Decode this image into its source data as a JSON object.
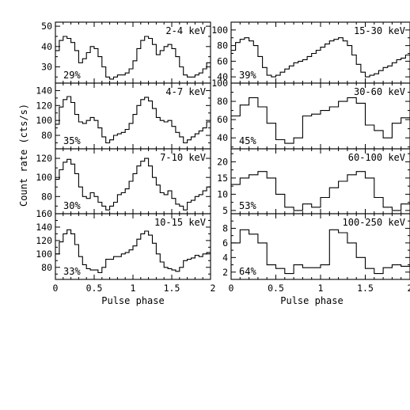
{
  "figure": {
    "ylabel": "Count rate (cts/s)",
    "xlabel_left": "Pulse phase",
    "xlabel_right": "Pulse phase"
  },
  "chart_data": [
    {
      "type": "line",
      "step": true,
      "column": "left",
      "row": 0,
      "band": "2-4 keV",
      "pulsed_fraction": "29%",
      "xlim": [
        0,
        2
      ],
      "ylim": [
        22,
        52
      ],
      "yticks": [
        30,
        40,
        50
      ],
      "xticks": [
        0,
        0.5,
        1,
        1.5,
        2
      ],
      "x": [
        0,
        0.05,
        0.1,
        0.15,
        0.2,
        0.25,
        0.3,
        0.35,
        0.4,
        0.45,
        0.5,
        0.55,
        0.6,
        0.65,
        0.7,
        0.75,
        0.8,
        0.85,
        0.9,
        0.95,
        1,
        1.05,
        1.1,
        1.15,
        1.2,
        1.25,
        1.3,
        1.35,
        1.4,
        1.45,
        1.5,
        1.55,
        1.6,
        1.65,
        1.7,
        1.75,
        1.8,
        1.85,
        1.9,
        1.95
      ],
      "y": [
        38,
        43,
        45,
        44,
        42,
        38,
        32,
        34,
        37,
        40,
        39,
        35,
        30,
        25,
        24,
        25,
        26,
        26,
        27,
        29,
        33,
        39,
        43,
        45,
        44,
        41,
        36,
        38,
        40,
        41,
        39,
        35,
        30,
        26,
        25,
        25,
        26,
        27,
        29,
        32
      ]
    },
    {
      "type": "line",
      "step": true,
      "column": "left",
      "row": 1,
      "band": "4-7 keV",
      "pulsed_fraction": "35%",
      "xlim": [
        0,
        2
      ],
      "ylim": [
        62,
        150
      ],
      "yticks": [
        80,
        100,
        120,
        140
      ],
      "xticks": [
        0,
        0.5,
        1,
        1.5,
        2
      ],
      "x": [
        0,
        0.05,
        0.1,
        0.15,
        0.2,
        0.25,
        0.3,
        0.35,
        0.4,
        0.45,
        0.5,
        0.55,
        0.6,
        0.65,
        0.7,
        0.75,
        0.8,
        0.85,
        0.9,
        0.95,
        1,
        1.05,
        1.1,
        1.15,
        1.2,
        1.25,
        1.3,
        1.35,
        1.4,
        1.45,
        1.5,
        1.55,
        1.6,
        1.65,
        1.7,
        1.75,
        1.8,
        1.85,
        1.9,
        1.95
      ],
      "y": [
        95,
        118,
        128,
        132,
        124,
        108,
        98,
        96,
        100,
        104,
        100,
        90,
        78,
        70,
        74,
        80,
        82,
        84,
        88,
        96,
        108,
        120,
        128,
        131,
        126,
        116,
        104,
        100,
        98,
        100,
        92,
        84,
        78,
        70,
        74,
        78,
        82,
        86,
        90,
        98
      ]
    },
    {
      "type": "line",
      "step": true,
      "column": "left",
      "row": 2,
      "band": "7-10 keV",
      "pulsed_fraction": "30%",
      "xlim": [
        0,
        2
      ],
      "ylim": [
        62,
        130
      ],
      "yticks": [
        80,
        100,
        120
      ],
      "xticks": [
        0,
        0.5,
        1,
        1.5,
        2
      ],
      "x": [
        0,
        0.05,
        0.1,
        0.15,
        0.2,
        0.25,
        0.3,
        0.35,
        0.4,
        0.45,
        0.5,
        0.55,
        0.6,
        0.65,
        0.7,
        0.75,
        0.8,
        0.85,
        0.9,
        0.95,
        1,
        1.05,
        1.1,
        1.15,
        1.2,
        1.25,
        1.3,
        1.35,
        1.4,
        1.45,
        1.5,
        1.55,
        1.6,
        1.65,
        1.7,
        1.75,
        1.8,
        1.85,
        1.9,
        1.95
      ],
      "y": [
        98,
        108,
        116,
        119,
        114,
        104,
        90,
        80,
        78,
        84,
        80,
        74,
        70,
        66,
        70,
        74,
        82,
        84,
        88,
        96,
        104,
        112,
        117,
        120,
        112,
        100,
        92,
        84,
        82,
        86,
        78,
        72,
        70,
        66,
        74,
        76,
        80,
        82,
        86,
        90
      ]
    },
    {
      "type": "line",
      "step": true,
      "column": "left",
      "row": 3,
      "band": "10-15 keV",
      "pulsed_fraction": "33%",
      "xlim": [
        0,
        2
      ],
      "ylim": [
        62,
        160
      ],
      "yticks": [
        80,
        100,
        120,
        140,
        160
      ],
      "xticks": [
        0,
        0.5,
        1,
        1.5,
        2
      ],
      "x": [
        0,
        0.05,
        0.1,
        0.15,
        0.2,
        0.25,
        0.3,
        0.35,
        0.4,
        0.45,
        0.5,
        0.55,
        0.6,
        0.65,
        0.7,
        0.75,
        0.8,
        0.85,
        0.9,
        0.95,
        1,
        1.05,
        1.1,
        1.15,
        1.2,
        1.25,
        1.3,
        1.35,
        1.4,
        1.45,
        1.5,
        1.55,
        1.6,
        1.65,
        1.7,
        1.75,
        1.8,
        1.85,
        1.9,
        1.95
      ],
      "y": [
        100,
        118,
        130,
        136,
        130,
        114,
        96,
        84,
        78,
        76,
        76,
        72,
        80,
        92,
        92,
        96,
        96,
        100,
        102,
        106,
        112,
        122,
        130,
        134,
        128,
        116,
        100,
        88,
        80,
        78,
        76,
        74,
        80,
        90,
        92,
        94,
        98,
        96,
        100,
        102
      ]
    },
    {
      "type": "line",
      "step": true,
      "column": "right",
      "row": 0,
      "band": "15-30 keV",
      "pulsed_fraction": "39%",
      "xlim": [
        0,
        2
      ],
      "ylim": [
        32,
        110
      ],
      "yticks": [
        40,
        60,
        80,
        100
      ],
      "xticks": [
        0,
        0.5,
        1,
        1.5,
        2
      ],
      "x": [
        0,
        0.05,
        0.1,
        0.15,
        0.2,
        0.25,
        0.3,
        0.35,
        0.4,
        0.45,
        0.5,
        0.55,
        0.6,
        0.65,
        0.7,
        0.75,
        0.8,
        0.85,
        0.9,
        0.95,
        1,
        1.05,
        1.1,
        1.15,
        1.2,
        1.25,
        1.3,
        1.35,
        1.4,
        1.45,
        1.5,
        1.55,
        1.6,
        1.65,
        1.7,
        1.75,
        1.8,
        1.85,
        1.9,
        1.95
      ],
      "y": [
        74,
        84,
        88,
        90,
        86,
        80,
        66,
        52,
        42,
        40,
        42,
        46,
        50,
        54,
        58,
        60,
        62,
        66,
        70,
        74,
        78,
        82,
        86,
        88,
        90,
        86,
        80,
        68,
        56,
        46,
        40,
        42,
        44,
        48,
        52,
        54,
        58,
        62,
        64,
        68
      ]
    },
    {
      "type": "line",
      "step": true,
      "column": "right",
      "row": 1,
      "band": "30-60 keV",
      "pulsed_fraction": "45%",
      "xlim": [
        0,
        2
      ],
      "ylim": [
        28,
        100
      ],
      "yticks": [
        40,
        60,
        80,
        100
      ],
      "xticks": [
        0,
        0.5,
        1,
        1.5,
        2
      ],
      "x": [
        0,
        0.1,
        0.2,
        0.3,
        0.4,
        0.5,
        0.6,
        0.7,
        0.8,
        0.9,
        1,
        1.1,
        1.2,
        1.3,
        1.4,
        1.5,
        1.6,
        1.7,
        1.8,
        1.9
      ],
      "y": [
        64,
        76,
        84,
        74,
        56,
        38,
        34,
        40,
        64,
        66,
        70,
        74,
        80,
        84,
        78,
        54,
        48,
        40,
        56,
        62
      ]
    },
    {
      "type": "line",
      "step": true,
      "column": "right",
      "row": 2,
      "band": "60-100 keV",
      "pulsed_fraction": "53%",
      "xlim": [
        0,
        2
      ],
      "ylim": [
        4,
        24
      ],
      "yticks": [
        5,
        10,
        15,
        20
      ],
      "xticks": [
        0,
        0.5,
        1,
        1.5,
        2
      ],
      "x": [
        0,
        0.1,
        0.2,
        0.3,
        0.4,
        0.5,
        0.6,
        0.7,
        0.8,
        0.9,
        1,
        1.1,
        1.2,
        1.3,
        1.4,
        1.5,
        1.6,
        1.7,
        1.8,
        1.9
      ],
      "y": [
        13,
        15,
        16,
        17,
        15,
        10,
        6,
        5,
        7,
        6,
        9,
        12,
        14,
        16,
        17,
        15,
        9,
        6,
        5,
        7
      ]
    },
    {
      "type": "line",
      "step": true,
      "column": "right",
      "row": 3,
      "band": "100-250 keV",
      "pulsed_fraction": "64%",
      "xlim": [
        0,
        2
      ],
      "ylim": [
        1,
        10
      ],
      "yticks": [
        2,
        4,
        6,
        8
      ],
      "xticks": [
        0,
        0.5,
        1,
        1.5,
        2
      ],
      "x": [
        0,
        0.1,
        0.2,
        0.3,
        0.4,
        0.5,
        0.6,
        0.7,
        0.8,
        0.9,
        1,
        1.1,
        1.2,
        1.3,
        1.4,
        1.5,
        1.6,
        1.7,
        1.8,
        1.9
      ],
      "y": [
        6,
        7.8,
        7.2,
        6,
        3,
        2.5,
        1.8,
        3,
        2.6,
        2.6,
        3,
        7.8,
        7.4,
        6,
        4,
        2.5,
        1.8,
        2.6,
        3,
        2.8
      ]
    }
  ]
}
